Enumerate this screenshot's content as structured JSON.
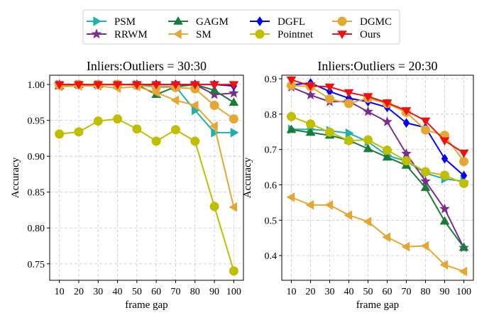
{
  "legend": {
    "columns": 4,
    "placement": "top-center",
    "entries": [
      {
        "name": "PSM",
        "color": "#20b2aa",
        "marker": "triangle-right"
      },
      {
        "name": "RRWM",
        "color": "#7b2d8e",
        "marker": "star"
      },
      {
        "name": "GAGM",
        "color": "#1a7a3a",
        "marker": "triangle-up"
      },
      {
        "name": "SM",
        "color": "#e3a733",
        "marker": "triangle-left"
      },
      {
        "name": "DGFL",
        "color": "#0000ff",
        "marker": "diamond"
      },
      {
        "name": "Pointnet",
        "color": "#bfbf00",
        "marker": "circle"
      },
      {
        "name": "DGMC",
        "color": "#e3a733",
        "marker": "circle"
      },
      {
        "name": "Ours",
        "color": "#ee1111",
        "marker": "triangle-down"
      }
    ]
  },
  "chart_data": [
    {
      "type": "line",
      "title": "Inliers:Outliers = 30:30",
      "xlabel": "frame gap",
      "ylabel": "Accuracy",
      "x": [
        10,
        20,
        30,
        40,
        50,
        60,
        70,
        80,
        90,
        100
      ],
      "xlim": [
        5,
        105
      ],
      "ylim": [
        0.727,
        1.013
      ],
      "yticks": [
        0.75,
        0.8,
        0.85,
        0.9,
        0.95,
        1.0
      ],
      "ytick_labels": [
        "0.75",
        "0.80",
        "0.85",
        "0.90",
        "0.95",
        "1.00"
      ],
      "xticks": [
        10,
        20,
        30,
        40,
        50,
        60,
        70,
        80,
        90,
        100
      ],
      "grid": true,
      "series": [
        {
          "name": "PSM",
          "values": [
            1.0,
            1.0,
            1.0,
            1.0,
            1.0,
            0.997,
            0.997,
            0.964,
            0.933,
            0.933
          ]
        },
        {
          "name": "RRWM",
          "values": [
            1.0,
            1.0,
            1.0,
            1.0,
            1.0,
            1.0,
            1.0,
            1.0,
            0.986,
            0.988
          ]
        },
        {
          "name": "GAGM",
          "values": [
            0.998,
            1.0,
            1.0,
            1.0,
            1.0,
            0.986,
            0.997,
            1.0,
            0.992,
            0.975
          ]
        },
        {
          "name": "SM",
          "values": [
            0.997,
            0.998,
            0.998,
            0.995,
            0.997,
            0.989,
            0.978,
            0.971,
            0.942,
            0.829
          ]
        },
        {
          "name": "DGFL",
          "values": [
            1.0,
            1.0,
            1.0,
            1.0,
            1.0,
            1.0,
            1.0,
            1.0,
            1.0,
            0.998
          ]
        },
        {
          "name": "Pointnet",
          "values": [
            0.931,
            0.934,
            0.949,
            0.952,
            0.938,
            0.921,
            0.937,
            0.921,
            0.83,
            0.74
          ]
        },
        {
          "name": "DGMC",
          "values": [
            0.999,
            1.0,
            1.0,
            1.0,
            0.999,
            0.996,
            0.996,
            0.994,
            0.971,
            0.952
          ]
        },
        {
          "name": "Ours",
          "values": [
            1.0,
            1.0,
            1.0,
            1.0,
            1.0,
            1.0,
            1.0,
            1.0,
            1.0,
            1.0
          ]
        }
      ]
    },
    {
      "type": "line",
      "title": "Inliers:Outliers = 20:30",
      "xlabel": "frame gap",
      "ylabel": "Accuracy",
      "x": [
        10,
        20,
        30,
        40,
        50,
        60,
        70,
        80,
        90,
        100
      ],
      "xlim": [
        5,
        105
      ],
      "ylim": [
        0.33,
        0.91
      ],
      "yticks": [
        0.4,
        0.5,
        0.6,
        0.7,
        0.8,
        0.9
      ],
      "ytick_labels": [
        "0.4",
        "0.5",
        "0.6",
        "0.7",
        "0.8",
        "0.9"
      ],
      "xticks": [
        10,
        20,
        30,
        40,
        50,
        60,
        70,
        80,
        90,
        100
      ],
      "grid": true,
      "series": [
        {
          "name": "PSM",
          "values": [
            0.757,
            0.757,
            0.753,
            0.746,
            0.722,
            0.683,
            0.667,
            0.633,
            0.617,
            0.61
          ]
        },
        {
          "name": "RRWM",
          "values": [
            0.876,
            0.854,
            0.835,
            0.836,
            0.807,
            0.778,
            0.688,
            0.61,
            0.532,
            0.422
          ]
        },
        {
          "name": "GAGM",
          "values": [
            0.756,
            0.748,
            0.74,
            0.726,
            0.702,
            0.678,
            0.655,
            0.592,
            0.497,
            0.423
          ]
        },
        {
          "name": "SM",
          "values": [
            0.565,
            0.543,
            0.543,
            0.514,
            0.496,
            0.452,
            0.425,
            0.427,
            0.374,
            0.355
          ]
        },
        {
          "name": "DGFL",
          "values": [
            0.883,
            0.888,
            0.864,
            0.845,
            0.835,
            0.819,
            0.775,
            0.762,
            0.674,
            0.626
          ]
        },
        {
          "name": "Pointnet",
          "values": [
            0.793,
            0.772,
            0.749,
            0.725,
            0.727,
            0.698,
            0.668,
            0.637,
            0.627,
            0.604
          ]
        },
        {
          "name": "DGMC",
          "values": [
            0.881,
            0.878,
            0.843,
            0.83,
            0.845,
            0.83,
            0.805,
            0.755,
            0.74,
            0.666
          ]
        },
        {
          "name": "Ours",
          "values": [
            0.897,
            0.88,
            0.877,
            0.861,
            0.85,
            0.832,
            0.81,
            0.781,
            0.725,
            0.69
          ]
        }
      ]
    }
  ]
}
